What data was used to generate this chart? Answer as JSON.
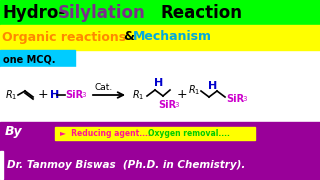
{
  "title_bg": "#00ff00",
  "subtitle_bg": "#ffff00",
  "mcq_bg": "#00ccff",
  "bottom_bg": "#990099",
  "reducing_bg": "#ffff00",
  "white_bg": "#ffffff",
  "title_hydro_color": "#000000",
  "title_silylation_color": "#7b2d8b",
  "title_reaction_color": "#000000",
  "subtitle_organic_color": "#ff8800",
  "subtitle_mechanism_color": "#00aadd",
  "subtitle_and_color": "#000000",
  "mcq_color": "#000000",
  "bottom_color": "#ffffff",
  "reducing_color_pink": "#ff1493",
  "reducing_color_green": "#00cc00",
  "blue_color": "#0000cc",
  "magenta_color": "#cc00cc",
  "black": "#000000",
  "hydro_text": "Hydro-",
  "silylation_text": "Silylation",
  "reaction_text": "Reaction",
  "organic_text": "Organic reactions ",
  "and_text": "&",
  "mechanism_text": "Mechanism",
  "mcq_text": "one MCQ.",
  "by_text": "By",
  "name_text": "Dr. Tanmoy Biswas  (Ph.D. in Chemistry).",
  "reducing_prefix": "►  Reducing agent....  ",
  "reducing_suffix": "Oxygen removal...."
}
